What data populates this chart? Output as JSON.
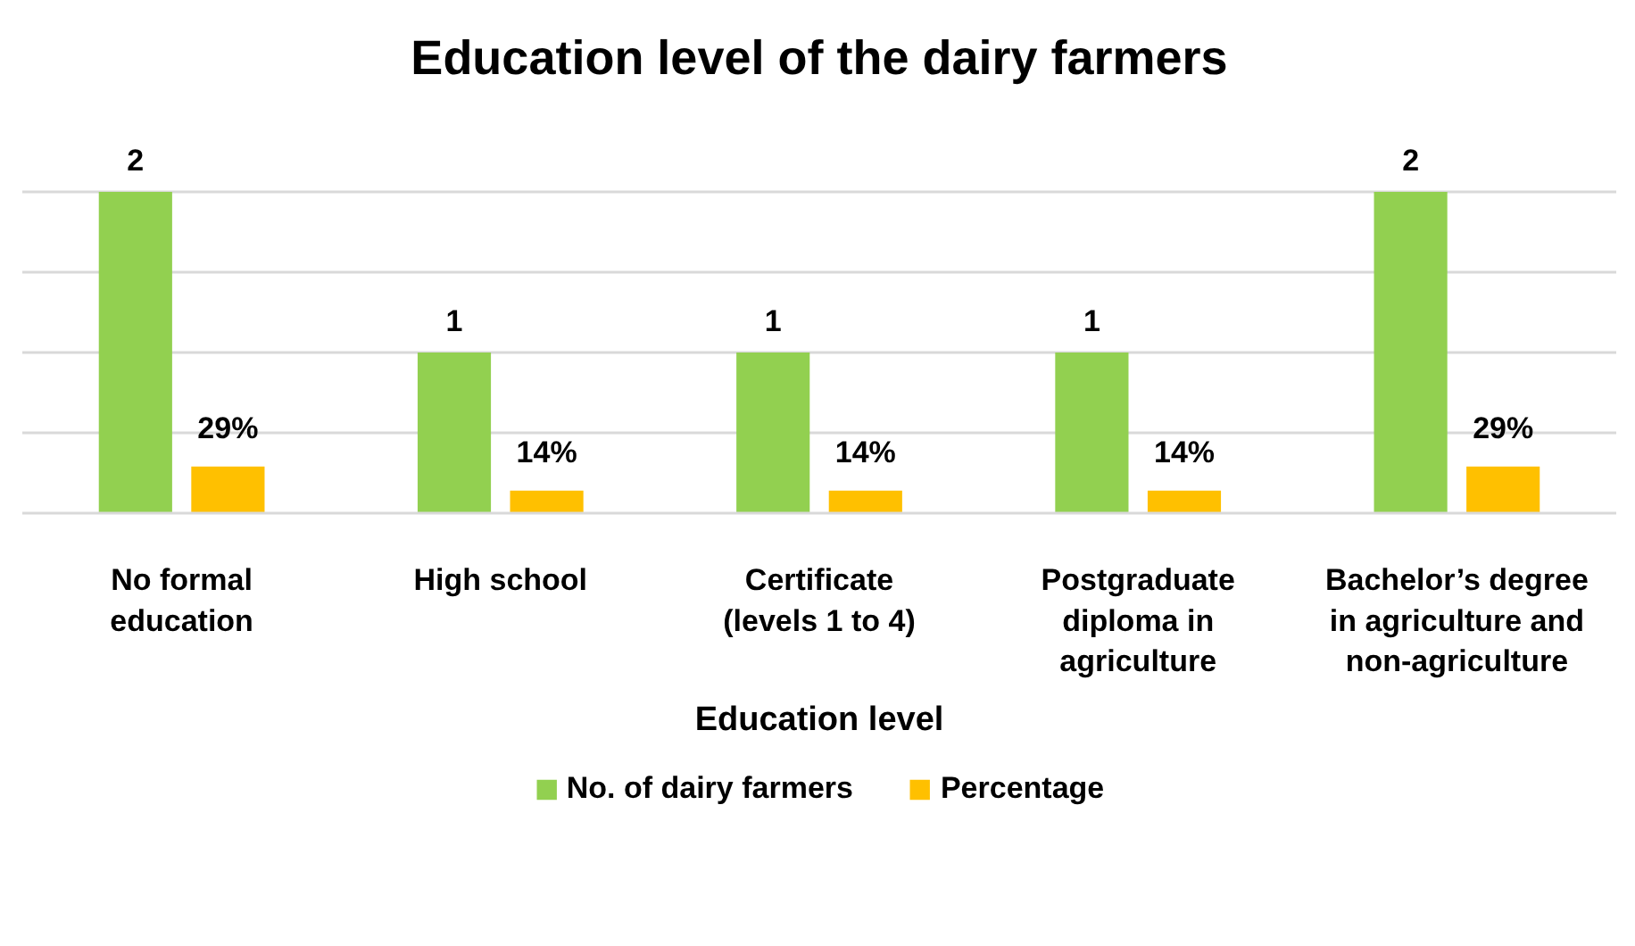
{
  "chart_data": {
    "type": "bar",
    "title": "Education level of the dairy farmers",
    "xlabel": "Education level",
    "categories": [
      "No formal education",
      "High school",
      "Certificate (levels 1 to 4)",
      "Postgraduate diploma in agriculture",
      "Bachelor’s degree in agriculture and non-agriculture"
    ],
    "series": [
      {
        "name": "No. of dairy farmers",
        "color": "#92d050",
        "values": [
          2,
          1,
          1,
          1,
          2
        ]
      },
      {
        "name": "Percentage",
        "color": "#ffc000",
        "values": [
          0.29,
          0.14,
          0.14,
          0.14,
          0.29
        ],
        "value_labels": [
          "29%",
          "14%",
          "14%",
          "14%",
          "29%"
        ]
      }
    ],
    "tick_labels": "x",
    "grid": "y",
    "legend": "bottom",
    "data_labels": true
  }
}
